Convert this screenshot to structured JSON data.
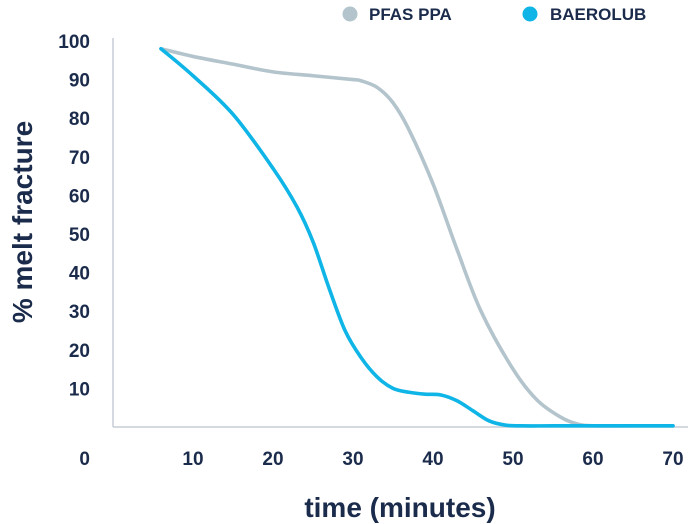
{
  "chart_data": {
    "type": "line",
    "xlabel": "time (minutes)",
    "ylabel": "% melt fracture",
    "xlim": [
      0,
      70
    ],
    "ylim": [
      0,
      100
    ],
    "xticks": [
      10,
      20,
      30,
      40,
      50,
      60,
      70
    ],
    "yticks": [
      0,
      10,
      20,
      30,
      40,
      50,
      60,
      70,
      80,
      90,
      100
    ],
    "grid": false,
    "legend_position": "top-right",
    "series": [
      {
        "name": "PFAS PPA",
        "color": "#b4c4cc",
        "x": [
          6,
          10,
          15,
          20,
          25,
          30,
          31,
          33,
          35,
          37,
          40,
          43,
          46,
          50,
          53,
          56,
          58,
          60,
          65,
          70
        ],
        "y": [
          98,
          96,
          94,
          92,
          91,
          90,
          89.7,
          88,
          84,
          77,
          63,
          46,
          30,
          15,
          7,
          2.5,
          0.8,
          0.3,
          0.3,
          0.3
        ]
      },
      {
        "name": "BAEROLUB",
        "color": "#0fb5e6",
        "x": [
          6,
          10,
          15,
          20,
          23,
          25,
          27,
          29,
          31,
          33,
          35,
          37,
          39,
          41,
          43,
          45,
          47,
          49,
          51,
          55,
          60,
          70
        ],
        "y": [
          98,
          91,
          81,
          67,
          57,
          48,
          36,
          25,
          18,
          13,
          10,
          9,
          8.5,
          8.3,
          6.8,
          4.2,
          1.6,
          0.5,
          0.3,
          0.3,
          0.3,
          0.3
        ]
      }
    ]
  }
}
